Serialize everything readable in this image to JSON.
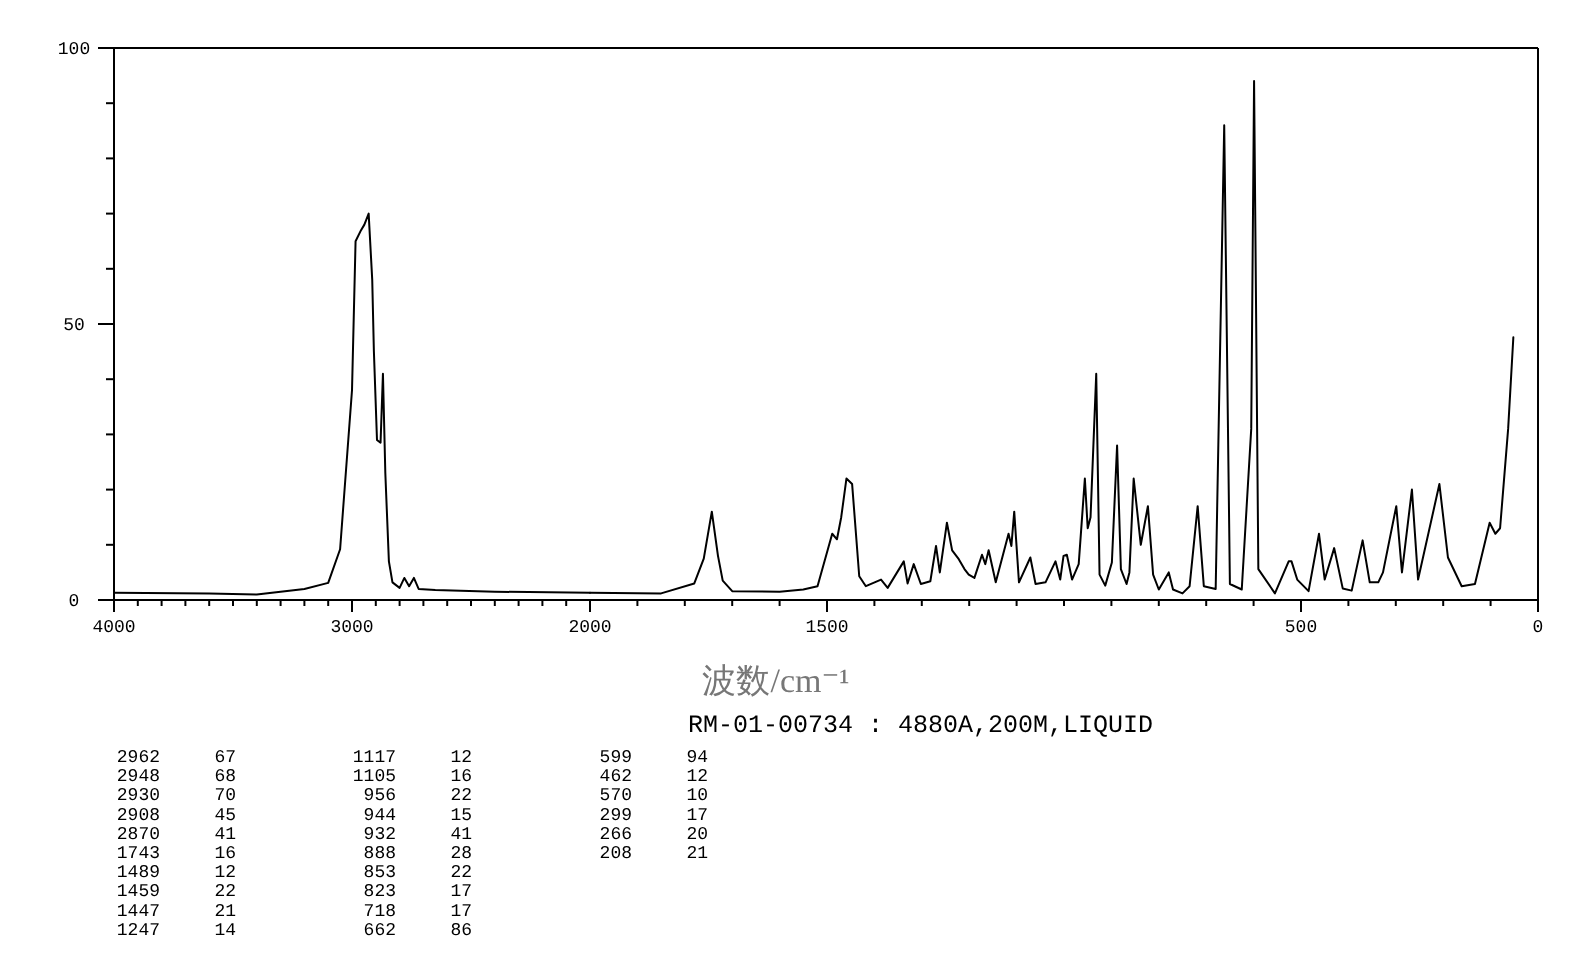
{
  "chart_data": [
    {
      "type": "line",
      "xlim": [
        4000,
        2000
      ],
      "ylim": [
        0,
        100
      ],
      "xticks": [
        4000,
        {
          "value": 3900,
          "label": null
        },
        {
          "value": 3800,
          "label": null
        },
        {
          "value": 3700,
          "label": null
        },
        {
          "value": 3600,
          "label": null
        },
        {
          "value": 3500,
          "label": null
        },
        {
          "value": 3400,
          "label": null
        },
        {
          "value": 3300,
          "label": null
        },
        {
          "value": 3200,
          "label": null
        },
        {
          "value": 3100,
          "label": null
        },
        3000,
        {
          "value": 2900,
          "label": null
        },
        {
          "value": 2800,
          "label": null
        },
        {
          "value": 2700,
          "label": null
        },
        {
          "value": 2600,
          "label": null
        },
        {
          "value": 2500,
          "label": null
        },
        {
          "value": 2400,
          "label": null
        },
        {
          "value": 2300,
          "label": null
        },
        {
          "value": 2200,
          "label": null
        },
        {
          "value": 2100,
          "label": null
        },
        {
          "value": 2000,
          "label": null
        }
      ],
      "yticks": [
        0,
        {
          "value": 10,
          "label": null
        },
        {
          "value": 20,
          "label": null
        },
        {
          "value": 30,
          "label": null
        },
        {
          "value": 40,
          "label": null
        },
        50,
        {
          "value": 60,
          "label": null
        },
        {
          "value": 70,
          "label": null
        },
        {
          "value": 80,
          "label": null
        },
        {
          "value": 90,
          "label": null
        },
        100
      ],
      "series": [
        {
          "color": "#000000",
          "x": [
            4000,
            3600,
            3400,
            3200,
            3100,
            3050,
            3000,
            2985,
            2962,
            2948,
            2930,
            2915,
            2908,
            2895,
            2880,
            2870,
            2860,
            2845,
            2830,
            2800,
            2780,
            2760,
            2740,
            2720,
            2650,
            2400,
            2000
          ],
          "values": [
            1.3,
            1.2,
            1.0,
            2.0,
            3.1,
            9.2,
            38,
            65,
            67,
            68,
            70,
            58,
            45,
            29,
            28.5,
            41,
            23,
            7,
            3.2,
            2.2,
            4,
            2.5,
            4,
            2,
            1.8,
            1.5,
            1.3
          ]
        }
      ]
    },
    {
      "type": "line",
      "xlim": [
        2000,
        0
      ],
      "ylim": [
        0,
        100
      ],
      "tick_labels": "x",
      "xlabel": "波数/cm⁻¹",
      "xticks": [
        2000,
        {
          "value": 1900,
          "label": null
        },
        {
          "value": 1800,
          "label": null
        },
        {
          "value": 1700,
          "label": null
        },
        {
          "value": 1600,
          "label": null
        },
        1500,
        {
          "value": 1400,
          "label": null
        },
        {
          "value": 1300,
          "label": null
        },
        {
          "value": 1200,
          "label": null
        },
        {
          "value": 1100,
          "label": null
        },
        {
          "value": 1000,
          "label": null
        },
        {
          "value": 900,
          "label": null
        },
        {
          "value": 800,
          "label": null
        },
        {
          "value": 700,
          "label": null
        },
        {
          "value": 600,
          "label": null
        },
        500,
        {
          "value": 400,
          "label": null
        },
        {
          "value": 300,
          "label": null
        },
        {
          "value": 200,
          "label": null
        },
        {
          "value": 100,
          "label": null
        },
        0
      ],
      "annotations": [
        "RM-01-00734 : 4880A,200M,LIQUID",
        "2962 67",
        "2948 68",
        "2930 70",
        "2908 45",
        "2870 41",
        "1743 16",
        "1489 12",
        "1459 22",
        "1447 21",
        "1247 14",
        "1117 12",
        "1105 16",
        "956 22",
        "944 15",
        "932 41",
        "888 28",
        "853 22",
        "823 17",
        "718 17",
        "662 86",
        "599 94",
        "462 12",
        "570 10",
        "299 17",
        "266 20",
        "208 21"
      ],
      "series": [
        {
          "color": "#000000",
          "x": [
            2000,
            1850,
            1780,
            1760,
            1743,
            1730,
            1720,
            1700,
            1600,
            1550,
            1520,
            1489,
            1479,
            1470,
            1459,
            1447,
            1432,
            1418,
            1386,
            1372,
            1338,
            1330,
            1317,
            1302,
            1282,
            1270,
            1262,
            1247,
            1236,
            1222,
            1210,
            1201,
            1189,
            1173,
            1166,
            1159,
            1144,
            1117,
            1111,
            1105,
            1095,
            1071,
            1060,
            1039,
            1018,
            1008,
            1001,
            994,
            983,
            969,
            956,
            950,
            944,
            932,
            925,
            913,
            899,
            888,
            880,
            868,
            862,
            853,
            838,
            823,
            812,
            800,
            779,
            770,
            750,
            735,
            718,
            705,
            680,
            662,
            650,
            625,
            605,
            599,
            590,
            555,
            526,
            520,
            508,
            484,
            462,
            450,
            430,
            412,
            393,
            370,
            355,
            337,
            327,
            299,
            287,
            266,
            253,
            208,
            190,
            161,
            133,
            102,
            90,
            80,
            63,
            52
          ],
          "values": [
            1.3,
            1.2,
            3,
            7.5,
            16,
            8,
            3.5,
            1.6,
            1.5,
            1.9,
            2.5,
            12,
            11,
            15,
            22,
            21,
            4.3,
            2.5,
            3.7,
            2.2,
            7,
            3,
            6.5,
            2.9,
            3.4,
            9.8,
            5,
            14,
            9,
            7.4,
            5.6,
            4.6,
            4,
            8.2,
            6.5,
            9,
            3.2,
            12,
            9.8,
            16,
            3.2,
            7.7,
            2.9,
            3.2,
            7,
            3.7,
            8,
            8.2,
            3.7,
            6.5,
            22,
            13,
            15,
            41,
            4.6,
            2.6,
            6.8,
            28,
            5.6,
            2.9,
            5,
            22,
            10,
            17,
            4.6,
            1.9,
            5,
            1.9,
            1.2,
            2.5,
            17,
            2.5,
            2,
            86,
            2.9,
            1.9,
            31,
            94,
            5.6,
            1.2,
            7,
            7,
            3.7,
            1.6,
            12,
            3.7,
            9.4,
            2.1,
            1.7,
            10.8,
            3.2,
            3.2,
            5,
            17,
            5,
            20,
            3.7,
            21,
            7.7,
            2.5,
            2.9,
            14,
            12,
            13,
            31,
            47.6
          ]
        }
      ]
    }
  ]
}
